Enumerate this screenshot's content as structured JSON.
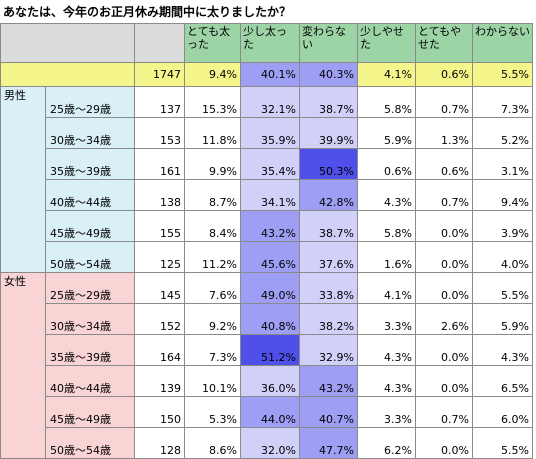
{
  "title": "あなたは、今年のお正月休み期間中に太りましたか？",
  "colors": {
    "header_bg": "#9dd4a6",
    "blank_bg": "#dcdcdc",
    "total_row_bg": "#f4f68c",
    "male_bg": "#d9f0f7",
    "female_bg": "#f9d4d4",
    "highlight_strong": "#4f4fea",
    "highlight_mid": "#9e9ef4",
    "highlight_light": "#d0d0f8"
  },
  "headers": [
    "とても太った",
    "少し太った",
    "変わらない",
    "少しやせた",
    "とてもやせた",
    "わからない"
  ],
  "total": {
    "n": "1747",
    "values": [
      "9.4%",
      "40.1%",
      "40.3%",
      "4.1%",
      "0.6%",
      "5.5%"
    ]
  },
  "groups": [
    {
      "label": "男性",
      "rows": [
        {
          "age": "25歳〜29歳",
          "n": "137",
          "values": [
            "15.3%",
            "32.1%",
            "38.7%",
            "5.8%",
            "0.7%",
            "7.3%"
          ]
        },
        {
          "age": "30歳〜34歳",
          "n": "153",
          "values": [
            "11.8%",
            "35.9%",
            "39.9%",
            "5.9%",
            "1.3%",
            "5.2%"
          ]
        },
        {
          "age": "35歳〜39歳",
          "n": "161",
          "values": [
            "9.9%",
            "35.4%",
            "50.3%",
            "0.6%",
            "0.6%",
            "3.1%"
          ]
        },
        {
          "age": "40歳〜44歳",
          "n": "138",
          "values": [
            "8.7%",
            "34.1%",
            "42.8%",
            "4.3%",
            "0.7%",
            "9.4%"
          ]
        },
        {
          "age": "45歳〜49歳",
          "n": "155",
          "values": [
            "8.4%",
            "43.2%",
            "38.7%",
            "5.8%",
            "0.0%",
            "3.9%"
          ]
        },
        {
          "age": "50歳〜54歳",
          "n": "125",
          "values": [
            "11.2%",
            "45.6%",
            "37.6%",
            "1.6%",
            "0.0%",
            "4.0%"
          ]
        }
      ]
    },
    {
      "label": "女性",
      "rows": [
        {
          "age": "25歳〜29歳",
          "n": "145",
          "values": [
            "7.6%",
            "49.0%",
            "33.8%",
            "4.1%",
            "0.0%",
            "5.5%"
          ]
        },
        {
          "age": "30歳〜34歳",
          "n": "152",
          "values": [
            "9.2%",
            "40.8%",
            "38.2%",
            "3.3%",
            "2.6%",
            "5.9%"
          ]
        },
        {
          "age": "35歳〜39歳",
          "n": "164",
          "values": [
            "7.3%",
            "51.2%",
            "32.9%",
            "4.3%",
            "0.0%",
            "4.3%"
          ]
        },
        {
          "age": "40歳〜44歳",
          "n": "139",
          "values": [
            "10.1%",
            "36.0%",
            "43.2%",
            "4.3%",
            "0.0%",
            "6.5%"
          ]
        },
        {
          "age": "45歳〜49歳",
          "n": "150",
          "values": [
            "5.3%",
            "44.0%",
            "40.7%",
            "3.3%",
            "0.7%",
            "6.0%"
          ]
        },
        {
          "age": "50歳〜54歳",
          "n": "128",
          "values": [
            "8.6%",
            "32.0%",
            "47.7%",
            "6.2%",
            "0.0%",
            "5.5%"
          ]
        }
      ]
    }
  ]
}
